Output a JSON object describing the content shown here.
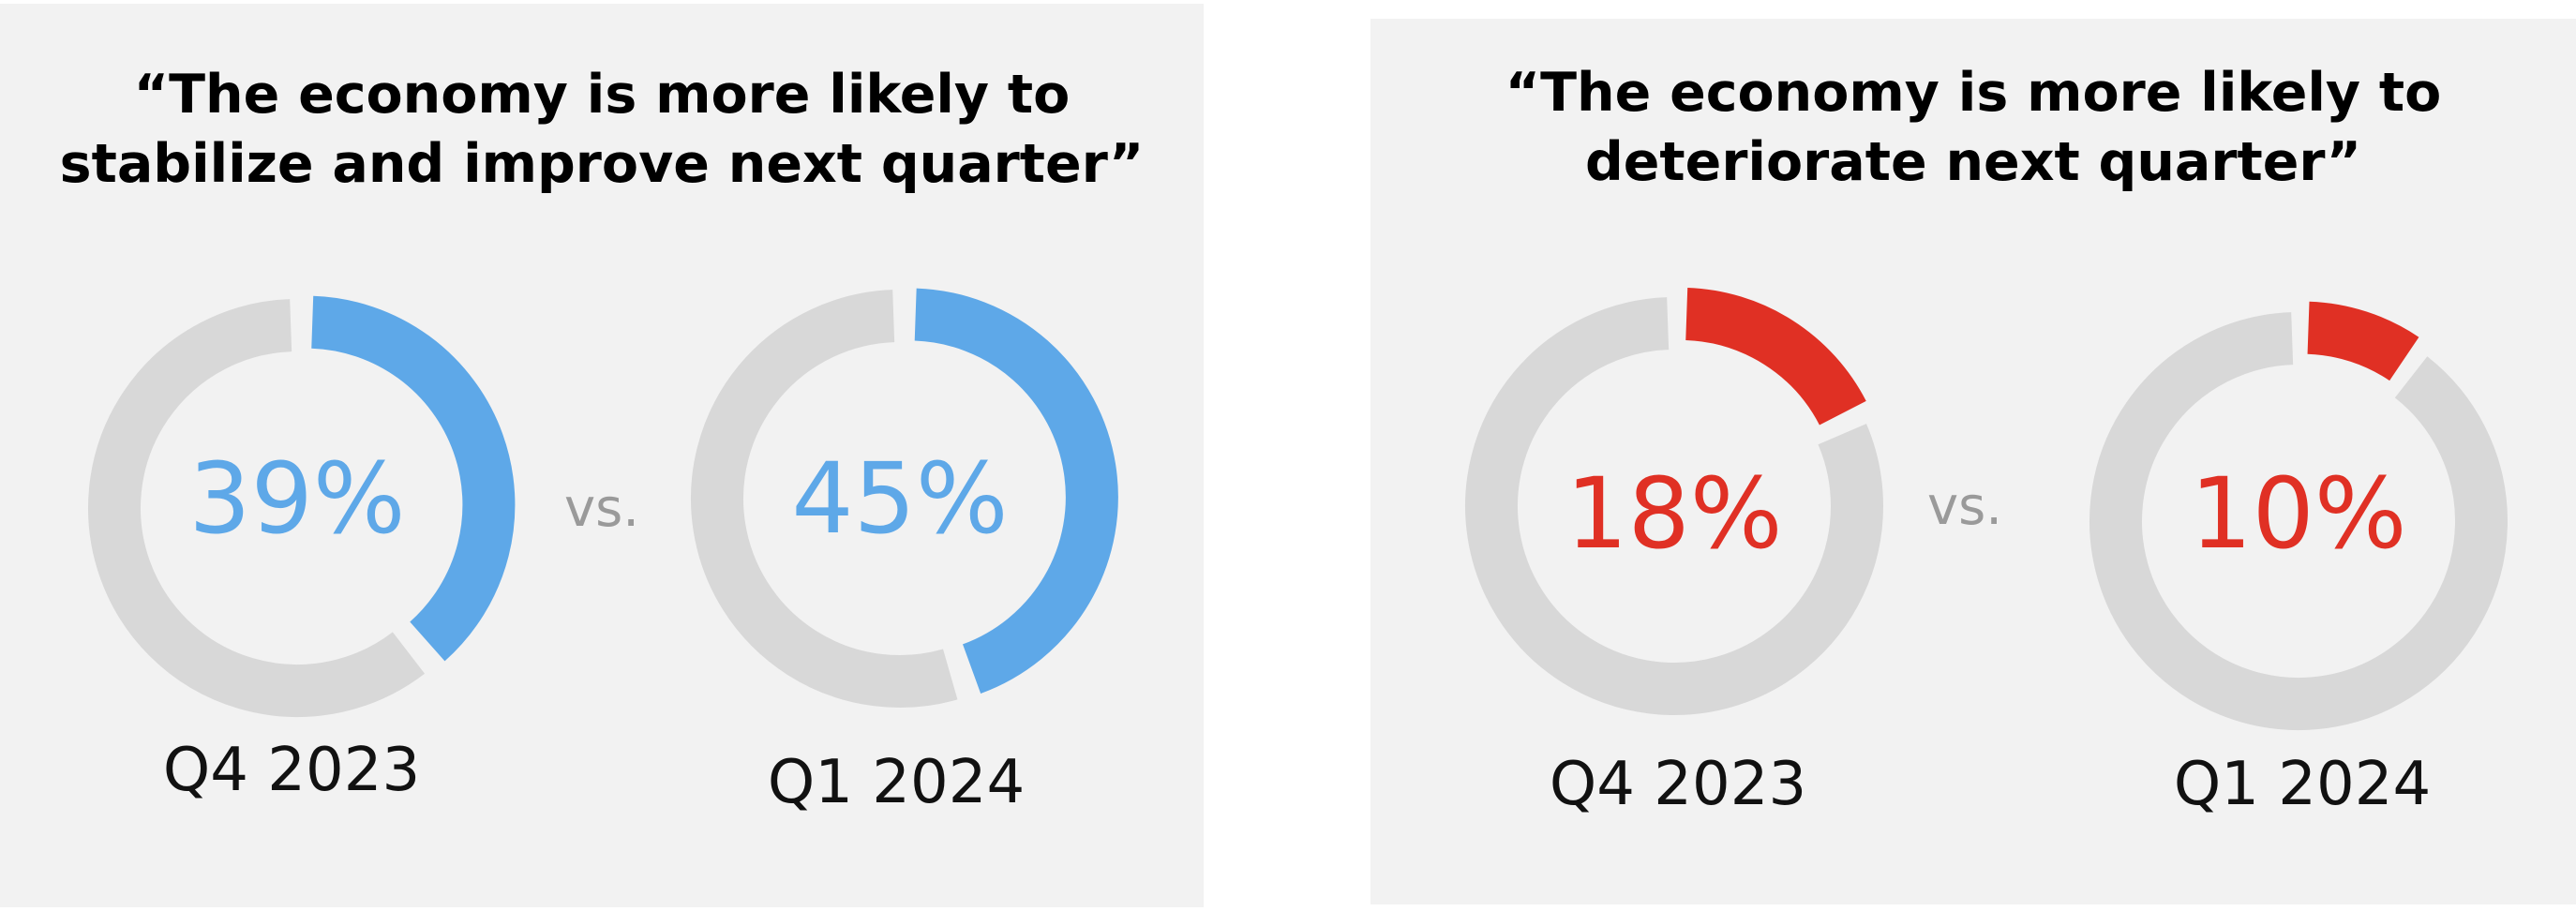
{
  "chart_data": [
    {
      "type": "donut",
      "title_line1": "“The economy is more likely to",
      "title_line2": "stabilize and improve next quarter”",
      "separator": "vs.",
      "color": "#5ea8e8",
      "series": [
        {
          "label": "Q4 2023",
          "value": 39,
          "display": "39%"
        },
        {
          "label": "Q1 2024",
          "value": 45,
          "display": "45%"
        }
      ]
    },
    {
      "type": "donut",
      "title_line1": "“The economy is more likely to",
      "title_line2": "deteriorate next quarter”",
      "separator": "vs.",
      "color": "#e03024",
      "series": [
        {
          "label": "Q4 2023",
          "value": 18,
          "display": "18%"
        },
        {
          "label": "Q1 2024",
          "value": 10,
          "display": "10%"
        }
      ]
    }
  ],
  "colors": {
    "remainder": "#d8d8d8",
    "panel_bg": "#f2f2f2"
  }
}
